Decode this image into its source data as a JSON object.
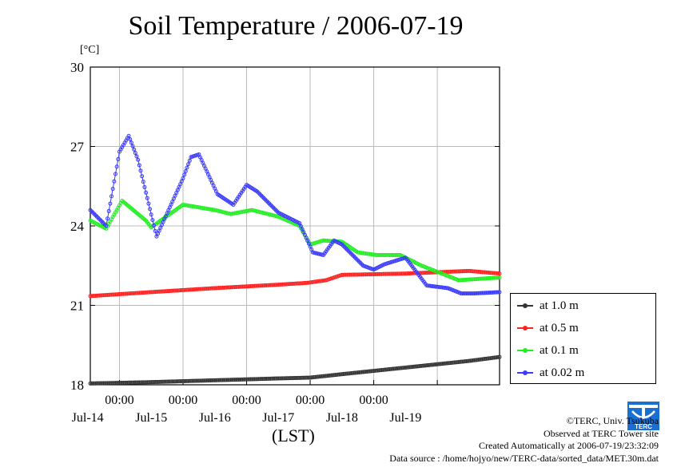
{
  "title": "Soil Temperature / 2006-07-19",
  "y_unit": "[°C]",
  "x_unit": "(LST)",
  "legend": [
    {
      "label": "at 1.0 m",
      "color": "#333333"
    },
    {
      "label": "at 0.5 m",
      "color": "#ff2020"
    },
    {
      "label": "at 0.1 m",
      "color": "#20ee20"
    },
    {
      "label": "at 0.02 m",
      "color": "#3a3aff"
    }
  ],
  "credits": {
    "line1": "©TERC, Univ. Tsukuba",
    "line2": "Observed at TERC Tower site",
    "line3": "Created Automatically at 2006-07-19/23:32:09",
    "line4": "Data source : /home/hojyo/new/TERC-data/sorted_data/MET.30m.dat"
  },
  "logo_text": "TERC",
  "chart_data": {
    "type": "line",
    "title": "Soil Temperature / 2006-07-19",
    "xlabel": "(LST)",
    "ylabel": "[°C]",
    "ylim": [
      18,
      30
    ],
    "y_ticks": [
      "18",
      "21",
      "24",
      "27",
      "30"
    ],
    "x_range": [
      "2006-07-13 13:00",
      "2006-07-19 23:30"
    ],
    "x_time_ticks": [
      "00:00",
      "00:00",
      "00:00",
      "00:00",
      "00:00"
    ],
    "x_date_labels": [
      "Jul-14",
      "Jul-15",
      "Jul-16",
      "Jul-17",
      "Jul-18",
      "Jul-19"
    ],
    "grid": true,
    "legend_position": "right",
    "series": [
      {
        "name": "at 1.0 m",
        "color": "#333333",
        "x": [
          "2006-07-13 13:00",
          "2006-07-14 12:00",
          "2006-07-15 12:00",
          "2006-07-16 12:00",
          "2006-07-17 00:00",
          "2006-07-17 12:00",
          "2006-07-18 12:00",
          "2006-07-19 12:00",
          "2006-07-19 23:30"
        ],
        "values": [
          18.05,
          18.1,
          18.17,
          18.24,
          18.27,
          18.4,
          18.65,
          18.9,
          19.05
        ]
      },
      {
        "name": "at 0.5 m",
        "color": "#ff2020",
        "x": [
          "2006-07-13 13:00",
          "2006-07-14 12:00",
          "2006-07-15 12:00",
          "2006-07-16 12:00",
          "2006-07-16 23:00",
          "2006-07-17 06:00",
          "2006-07-17 12:00",
          "2006-07-18 12:00",
          "2006-07-19 12:00",
          "2006-07-19 23:30"
        ],
        "values": [
          21.35,
          21.5,
          21.65,
          21.78,
          21.85,
          21.95,
          22.15,
          22.2,
          22.3,
          22.2
        ]
      },
      {
        "name": "at 0.1 m",
        "color": "#20ee20",
        "x": [
          "2006-07-13 13:00",
          "2006-07-13 19:00",
          "2006-07-14 01:00",
          "2006-07-14 10:00",
          "2006-07-14 12:00",
          "2006-07-15 00:00",
          "2006-07-15 12:00",
          "2006-07-15 18:00",
          "2006-07-16 02:00",
          "2006-07-16 12:00",
          "2006-07-16 20:00",
          "2006-07-17 00:00",
          "2006-07-17 05:00",
          "2006-07-17 12:00",
          "2006-07-17 18:00",
          "2006-07-18 01:00",
          "2006-07-18 10:00",
          "2006-07-18 18:00",
          "2006-07-19 03:00",
          "2006-07-19 08:00",
          "2006-07-19 23:30"
        ],
        "values": [
          24.2,
          23.9,
          24.95,
          24.2,
          23.95,
          24.8,
          24.6,
          24.45,
          24.6,
          24.35,
          24.0,
          23.3,
          23.45,
          23.4,
          23.0,
          22.9,
          22.9,
          22.5,
          22.15,
          21.95,
          22.05
        ]
      },
      {
        "name": "at 0.02 m",
        "color": "#3a3aff",
        "x": [
          "2006-07-13 13:00",
          "2006-07-13 19:00",
          "2006-07-14 00:00",
          "2006-07-14 03:30",
          "2006-07-14 07:00",
          "2006-07-14 14:00",
          "2006-07-15 00:00",
          "2006-07-15 03:00",
          "2006-07-15 06:00",
          "2006-07-15 13:00",
          "2006-07-15 19:00",
          "2006-07-16 00:00",
          "2006-07-16 04:00",
          "2006-07-16 12:00",
          "2006-07-16 20:00",
          "2006-07-17 01:00",
          "2006-07-17 05:00",
          "2006-07-17 09:00",
          "2006-07-17 12:00",
          "2006-07-17 20:00",
          "2006-07-18 00:00",
          "2006-07-18 04:00",
          "2006-07-18 12:00",
          "2006-07-18 20:00",
          "2006-07-19 04:00",
          "2006-07-19 09:00",
          "2006-07-19 14:00",
          "2006-07-19 23:30"
        ],
        "values": [
          24.6,
          24.0,
          26.8,
          27.4,
          26.5,
          23.6,
          25.8,
          26.6,
          26.7,
          25.2,
          24.8,
          25.55,
          25.3,
          24.5,
          24.1,
          23.0,
          22.9,
          23.45,
          23.3,
          22.5,
          22.35,
          22.55,
          22.8,
          21.75,
          21.65,
          21.45,
          21.45,
          21.5
        ]
      }
    ]
  }
}
